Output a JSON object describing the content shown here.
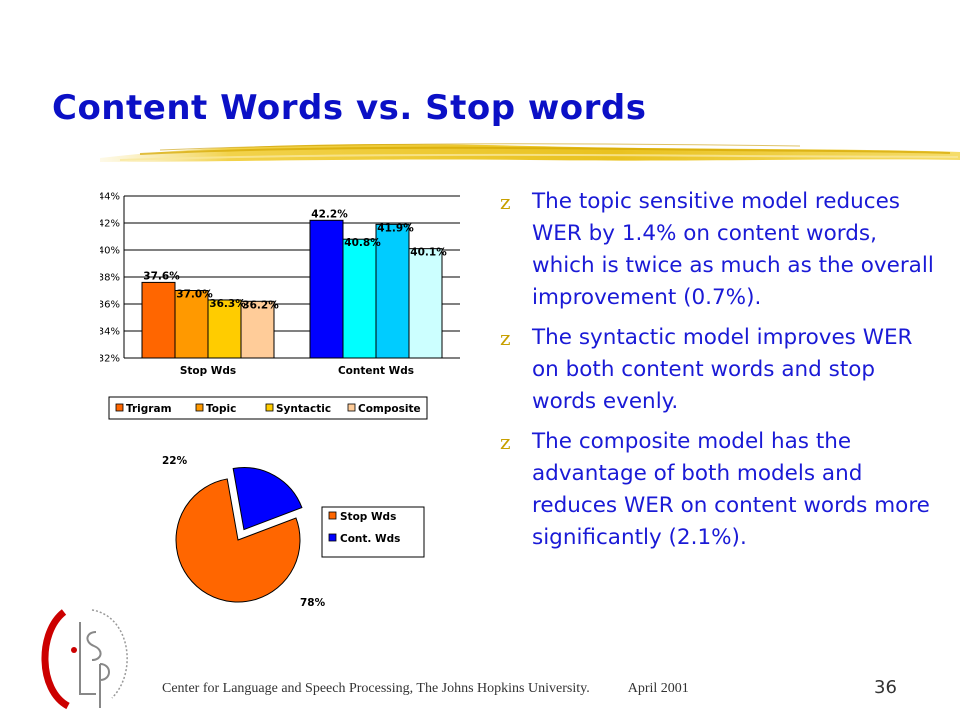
{
  "slide": {
    "title": "Content Words vs. Stop words",
    "footer_left": "Center for Language and Speech Processing, The Johns Hopkins University.",
    "footer_date": "April 2001",
    "page_number": "36",
    "bullet_glyph": "z",
    "bullets": [
      "The topic sensitive model reduces WER by 1.4% on content words, which is twice as much as the overall improvement (0.7%).",
      "The syntactic model improves WER on both content words and stop words evenly.",
      "The composite model has the advantage of both models and reduces WER on content words more significantly (2.1%)."
    ],
    "colors": {
      "title": "#0b10c6",
      "bullet_text": "#1a1ad6",
      "bullet_mark": "#c8a000"
    }
  },
  "chart_data": [
    {
      "type": "bar",
      "categories": [
        "Stop Wds",
        "Content Wds"
      ],
      "series": [
        {
          "name": "Trigram",
          "values": [
            37.6,
            42.2
          ],
          "colors": [
            "#ff6600",
            "#0000ff"
          ]
        },
        {
          "name": "Topic",
          "values": [
            37.0,
            40.8
          ],
          "colors": [
            "#ff9900",
            "#00ffff"
          ]
        },
        {
          "name": "Syntactic",
          "values": [
            36.3,
            41.9
          ],
          "colors": [
            "#ffcc00",
            "#00ccff"
          ]
        },
        {
          "name": "Composite",
          "values": [
            36.2,
            40.1
          ],
          "colors": [
            "#ffcc99",
            "#ccffff"
          ]
        }
      ],
      "data_labels": [
        [
          "37.6%",
          "37.0%",
          "36.3%",
          "36.2%"
        ],
        [
          "42.2%",
          "40.8%",
          "41.9%",
          "40.1%"
        ]
      ],
      "yticks": [
        "32%",
        "34%",
        "36%",
        "38%",
        "40%",
        "42%",
        "44%"
      ],
      "ylim": [
        32,
        44
      ],
      "grid": true,
      "legend": "bottom",
      "legend_colors": [
        "#ff6600",
        "#ff9900",
        "#ffcc00",
        "#ffcc99"
      ]
    },
    {
      "type": "pie",
      "labels": [
        "Stop Wds",
        "Cont. Wds"
      ],
      "values": [
        78,
        22
      ],
      "value_labels": [
        "78%",
        "22%"
      ],
      "colors": [
        "#ff6600",
        "#0000ff"
      ],
      "exploded": "Cont. Wds",
      "legend": "right"
    }
  ]
}
